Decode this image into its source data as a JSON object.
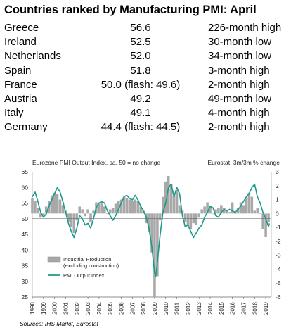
{
  "title": "Countries ranked by Manufacturing PMI: April",
  "rankings": [
    {
      "country": "Greece",
      "value": "56.6",
      "note": "226-month high"
    },
    {
      "country": "Ireland",
      "value": "52.5",
      "note": "30-month low"
    },
    {
      "country": "Netherlands",
      "value": "52.0",
      "note": "34-month low"
    },
    {
      "country": "Spain",
      "value": "51.8",
      "note": "3-month high"
    },
    {
      "country": "France",
      "value": "50.0 (flash: 49.6)",
      "note": "2-month high"
    },
    {
      "country": "Austria",
      "value": "49.2",
      "note": "49-month low"
    },
    {
      "country": "Italy",
      "value": "49.1",
      "note": "4-month high"
    },
    {
      "country": "Germany",
      "value": "44.4 (flash: 44.5)",
      "note": "2-month high"
    }
  ],
  "colors": {
    "pmi_line": "#1a9a8c",
    "bars": "#a8a8a8",
    "bar_edge": "#8a8a8a",
    "axis": "#444444"
  },
  "source": "Sources: IHS Markit, Eurostat",
  "chart_data": {
    "type": "line",
    "left_axis_label": "Eurozone PMI Output  Index, sa, 50 = no change",
    "right_axis_label": "Eurostat, 3m/3m  % change",
    "x_range": [
      1998,
      2019.5
    ],
    "y_left": {
      "lim": [
        25,
        65
      ],
      "ticks": [
        25,
        30,
        35,
        40,
        45,
        50,
        55,
        60,
        65
      ]
    },
    "y_right": {
      "lim": [
        -6,
        3
      ],
      "ticks": [
        -6,
        -5,
        -4,
        -3,
        -2,
        -1,
        0,
        1,
        2,
        3
      ]
    },
    "x_tick_labels": [
      "1998",
      "1999",
      "2000",
      "2001",
      "2002",
      "2003",
      "2004",
      "2005",
      "2006",
      "2007",
      "2008",
      "2009",
      "2010",
      "2011",
      "2012",
      "2013",
      "2014",
      "2015",
      "2016",
      "2017",
      "2018",
      "2019"
    ],
    "legend": {
      "position": "lower-left",
      "entries": [
        "Industrial Production\n(excluding construction)",
        "PMI Output Index"
      ]
    },
    "series": [
      {
        "name": "PMI Output Index",
        "axis": "left",
        "points": [
          [
            1998,
            57
          ],
          [
            1998.25,
            58.5
          ],
          [
            1998.5,
            55.5
          ],
          [
            1998.75,
            52
          ],
          [
            1999,
            50.5
          ],
          [
            1999.25,
            51.5
          ],
          [
            1999.5,
            54
          ],
          [
            1999.75,
            56
          ],
          [
            2000,
            58
          ],
          [
            2000.25,
            60
          ],
          [
            2000.5,
            58.5
          ],
          [
            2000.75,
            55.5
          ],
          [
            2001,
            52
          ],
          [
            2001.25,
            48.5
          ],
          [
            2001.5,
            46
          ],
          [
            2001.75,
            44
          ],
          [
            2002,
            47
          ],
          [
            2002.25,
            51
          ],
          [
            2002.5,
            50
          ],
          [
            2002.75,
            48
          ],
          [
            2003,
            48.5
          ],
          [
            2003.25,
            47
          ],
          [
            2003.5,
            50
          ],
          [
            2003.75,
            53.5
          ],
          [
            2004,
            55
          ],
          [
            2004.25,
            55.5
          ],
          [
            2004.5,
            55
          ],
          [
            2004.75,
            52.5
          ],
          [
            2005,
            51
          ],
          [
            2005.25,
            49.5
          ],
          [
            2005.5,
            51
          ],
          [
            2005.75,
            53
          ],
          [
            2006,
            55
          ],
          [
            2006.25,
            57
          ],
          [
            2006.5,
            57.5
          ],
          [
            2006.75,
            56.5
          ],
          [
            2007,
            56
          ],
          [
            2007.25,
            57.5
          ],
          [
            2007.5,
            56
          ],
          [
            2007.75,
            54
          ],
          [
            2008,
            52.5
          ],
          [
            2008.25,
            50.5
          ],
          [
            2008.5,
            47
          ],
          [
            2008.75,
            41
          ],
          [
            2009,
            32.5
          ],
          [
            2009.1,
            31.5
          ],
          [
            2009.25,
            36
          ],
          [
            2009.5,
            45
          ],
          [
            2009.75,
            52
          ],
          [
            2010,
            55
          ],
          [
            2010.25,
            60
          ],
          [
            2010.5,
            61
          ],
          [
            2010.75,
            57
          ],
          [
            2011,
            60
          ],
          [
            2011.25,
            58
          ],
          [
            2011.5,
            51
          ],
          [
            2011.75,
            47.5
          ],
          [
            2012,
            48
          ],
          [
            2012.25,
            46
          ],
          [
            2012.5,
            44
          ],
          [
            2012.75,
            45.5
          ],
          [
            2013,
            47
          ],
          [
            2013.25,
            48
          ],
          [
            2013.5,
            50.5
          ],
          [
            2013.75,
            52
          ],
          [
            2014,
            54
          ],
          [
            2014.25,
            53.5
          ],
          [
            2014.5,
            51
          ],
          [
            2014.75,
            50.5
          ],
          [
            2015,
            52
          ],
          [
            2015.25,
            53
          ],
          [
            2015.5,
            52.5
          ],
          [
            2015.75,
            53
          ],
          [
            2016,
            52.5
          ],
          [
            2016.25,
            52
          ],
          [
            2016.5,
            53
          ],
          [
            2016.75,
            54
          ],
          [
            2017,
            55.5
          ],
          [
            2017.25,
            57
          ],
          [
            2017.5,
            58
          ],
          [
            2017.75,
            60
          ],
          [
            2018,
            61
          ],
          [
            2018.25,
            57
          ],
          [
            2018.5,
            55
          ],
          [
            2018.75,
            52
          ],
          [
            2019,
            50
          ],
          [
            2019.25,
            47.5
          ],
          [
            2019.33,
            48.5
          ]
        ]
      },
      {
        "name": "Industrial Production\n(excluding construction)",
        "axis": "right",
        "bars": [
          [
            1998,
            1.1
          ],
          [
            1998.25,
            0.9
          ],
          [
            1998.5,
            0.4
          ],
          [
            1998.75,
            -0.3
          ],
          [
            1999,
            -0.1
          ],
          [
            1999.25,
            0.5
          ],
          [
            1999.5,
            0.9
          ],
          [
            1999.75,
            1.3
          ],
          [
            2000,
            1.5
          ],
          [
            2000.25,
            1.4
          ],
          [
            2000.5,
            1.0
          ],
          [
            2000.75,
            0.6
          ],
          [
            2001,
            0.2
          ],
          [
            2001.25,
            -0.6
          ],
          [
            2001.5,
            -1.0
          ],
          [
            2001.75,
            -1.4
          ],
          [
            2002,
            -0.5
          ],
          [
            2002.25,
            0.5
          ],
          [
            2002.5,
            0.3
          ],
          [
            2002.75,
            -0.2
          ],
          [
            2003,
            0.3
          ],
          [
            2003.25,
            -0.6
          ],
          [
            2003.5,
            0.2
          ],
          [
            2003.75,
            0.8
          ],
          [
            2004,
            0.7
          ],
          [
            2004.25,
            0.9
          ],
          [
            2004.5,
            0.5
          ],
          [
            2004.75,
            0.0
          ],
          [
            2005,
            0.3
          ],
          [
            2005.25,
            0.4
          ],
          [
            2005.5,
            0.7
          ],
          [
            2005.75,
            0.9
          ],
          [
            2006,
            1.0
          ],
          [
            2006.25,
            1.2
          ],
          [
            2006.5,
            1.1
          ],
          [
            2006.75,
            1.0
          ],
          [
            2007,
            0.9
          ],
          [
            2007.25,
            1.0
          ],
          [
            2007.5,
            0.9
          ],
          [
            2007.75,
            0.5
          ],
          [
            2008,
            0.2
          ],
          [
            2008.25,
            -0.7
          ],
          [
            2008.5,
            -1.3
          ],
          [
            2008.75,
            -2.8
          ],
          [
            2009,
            -6
          ],
          [
            2009.25,
            -4.5
          ],
          [
            2009.5,
            -0.5
          ],
          [
            2009.75,
            1.2
          ],
          [
            2010,
            2.3
          ],
          [
            2010.25,
            2.7
          ],
          [
            2010.5,
            2.1
          ],
          [
            2010.75,
            1.3
          ],
          [
            2011,
            1.7
          ],
          [
            2011.25,
            0.6
          ],
          [
            2011.5,
            0.2
          ],
          [
            2011.75,
            -0.6
          ],
          [
            2012,
            -0.9
          ],
          [
            2012.25,
            -1.1
          ],
          [
            2012.5,
            -0.7
          ],
          [
            2012.75,
            -0.8
          ],
          [
            2013,
            -0.3
          ],
          [
            2013.25,
            0.3
          ],
          [
            2013.5,
            0.5
          ],
          [
            2013.75,
            0.8
          ],
          [
            2014,
            0.5
          ],
          [
            2014.25,
            0.0
          ],
          [
            2014.5,
            0.3
          ],
          [
            2014.75,
            0.4
          ],
          [
            2015,
            0.6
          ],
          [
            2015.25,
            0.4
          ],
          [
            2015.5,
            0.2
          ],
          [
            2015.75,
            0.1
          ],
          [
            2016,
            0.8
          ],
          [
            2016.25,
            0.0
          ],
          [
            2016.5,
            0.4
          ],
          [
            2016.75,
            0.8
          ],
          [
            2017,
            0.6
          ],
          [
            2017.25,
            1.1
          ],
          [
            2017.5,
            1.5
          ],
          [
            2017.75,
            1.2
          ],
          [
            2018,
            0.2
          ],
          [
            2018.25,
            0.4
          ],
          [
            2018.5,
            0.0
          ],
          [
            2018.75,
            -1.1
          ],
          [
            2019,
            -1.7
          ],
          [
            2019.25,
            -0.6
          ]
        ]
      }
    ]
  }
}
